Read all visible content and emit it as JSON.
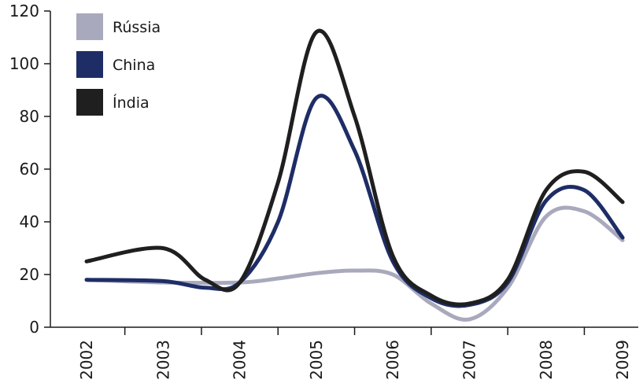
{
  "chart_data": {
    "type": "line",
    "x_categories": [
      "2002",
      "2003",
      "2004",
      "2005",
      "2006",
      "2007",
      "2008",
      "2009"
    ],
    "ylim": [
      0,
      120
    ],
    "yticks": [
      0,
      20,
      40,
      60,
      80,
      100,
      120
    ],
    "grid": false,
    "legend_position": "top-left",
    "series": [
      {
        "name": "Rússia",
        "color": "#a9a9bd",
        "points": [
          [
            0,
            18
          ],
          [
            1,
            17
          ],
          [
            2,
            17
          ],
          [
            2.5,
            18.5
          ],
          [
            3,
            20.5
          ],
          [
            3.5,
            21.5
          ],
          [
            4,
            20
          ],
          [
            4.5,
            9
          ],
          [
            5,
            3
          ],
          [
            5.5,
            15
          ],
          [
            6,
            42
          ],
          [
            6.5,
            44
          ],
          [
            7,
            33
          ]
        ]
      },
      {
        "name": "China",
        "color": "#1e2d66",
        "points": [
          [
            0,
            18
          ],
          [
            1,
            17.5
          ],
          [
            1.55,
            15
          ],
          [
            2,
            17
          ],
          [
            2.5,
            40
          ],
          [
            3,
            87
          ],
          [
            3.5,
            67
          ],
          [
            4,
            25
          ],
          [
            4.5,
            11
          ],
          [
            5,
            8.5
          ],
          [
            5.5,
            17
          ],
          [
            6,
            48
          ],
          [
            6.5,
            52
          ],
          [
            7,
            34
          ]
        ]
      },
      {
        "name": "Índia",
        "color": "#1f1f1f",
        "points": [
          [
            0,
            25
          ],
          [
            1,
            30
          ],
          [
            1.55,
            18
          ],
          [
            2,
            17
          ],
          [
            2.5,
            55
          ],
          [
            3,
            112
          ],
          [
            3.5,
            80
          ],
          [
            4,
            27
          ],
          [
            4.5,
            12
          ],
          [
            5,
            9
          ],
          [
            5.5,
            18
          ],
          [
            6,
            52
          ],
          [
            6.5,
            59
          ],
          [
            7,
            47.5
          ]
        ]
      }
    ]
  }
}
